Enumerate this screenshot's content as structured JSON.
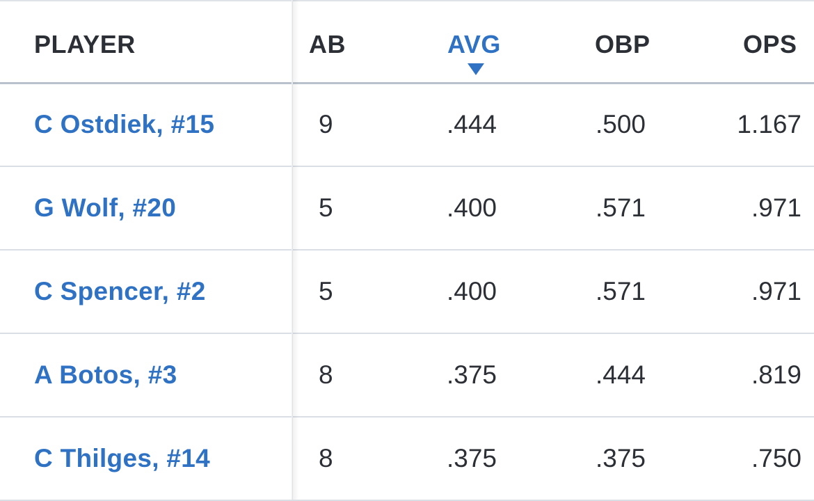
{
  "columns": {
    "player": "PLAYER",
    "ab": "AB",
    "avg": "AVG",
    "obp": "OBP",
    "ops": "OPS"
  },
  "sort": {
    "column": "avg",
    "direction": "desc",
    "icon": "caret-down-icon",
    "active_color": "#2f72c4"
  },
  "rows": [
    {
      "player": "C Ostdiek, #15",
      "ab": "9",
      "avg": ".444",
      "obp": ".500",
      "ops": "1.167"
    },
    {
      "player": "G Wolf, #20",
      "ab": "5",
      "avg": ".400",
      "obp": ".571",
      "ops": ".971"
    },
    {
      "player": "C Spencer, #2",
      "ab": "5",
      "avg": ".400",
      "obp": ".571",
      "ops": ".971"
    },
    {
      "player": "A Botos, #3",
      "ab": "8",
      "avg": ".375",
      "obp": ".444",
      "ops": ".819"
    },
    {
      "player": "C Thilges, #14",
      "ab": "8",
      "avg": ".375",
      "obp": ".375",
      "ops": ".750"
    }
  ]
}
